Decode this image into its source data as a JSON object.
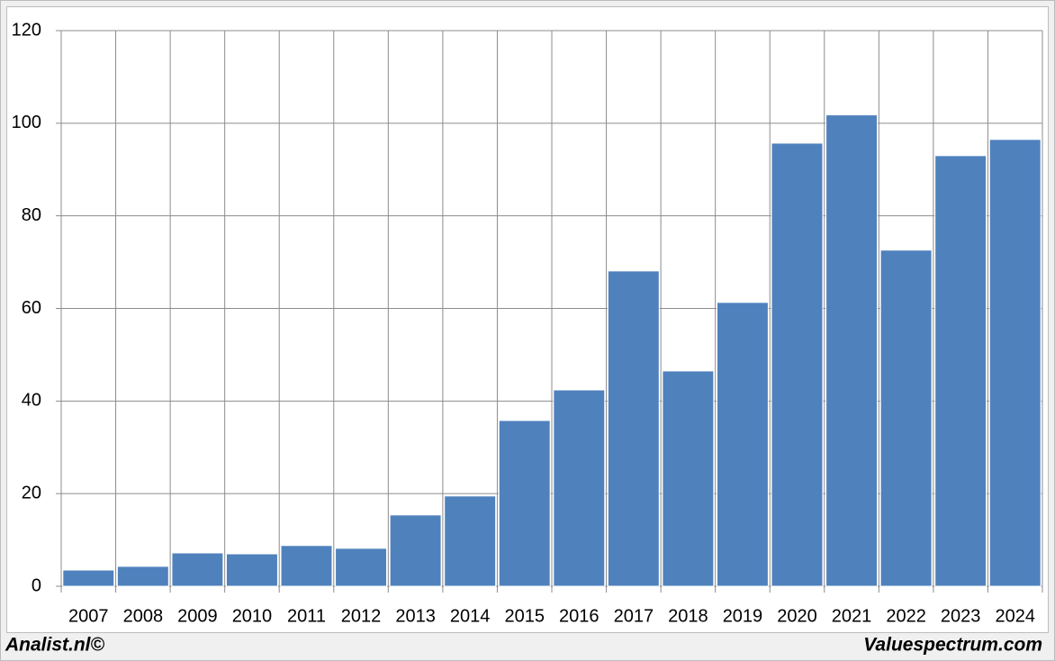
{
  "chart_data": {
    "type": "bar",
    "categories": [
      "2007",
      "2008",
      "2009",
      "2010",
      "2011",
      "2012",
      "2013",
      "2014",
      "2015",
      "2016",
      "2017",
      "2018",
      "2019",
      "2020",
      "2021",
      "2022",
      "2023",
      "2024"
    ],
    "values": [
      3.5,
      4.3,
      7.2,
      7.0,
      8.8,
      8.2,
      15.4,
      19.5,
      35.8,
      42.4,
      68.1,
      46.5,
      61.3,
      95.7,
      101.8,
      72.6,
      93.0,
      96.5
    ],
    "color": "#4f81bd",
    "ylim": [
      0,
      120
    ],
    "yticks": [
      0,
      20,
      40,
      60,
      80,
      100,
      120
    ],
    "grid": true,
    "footer_left": "Analist.nl©",
    "footer_right": "Valuespectrum.com"
  }
}
